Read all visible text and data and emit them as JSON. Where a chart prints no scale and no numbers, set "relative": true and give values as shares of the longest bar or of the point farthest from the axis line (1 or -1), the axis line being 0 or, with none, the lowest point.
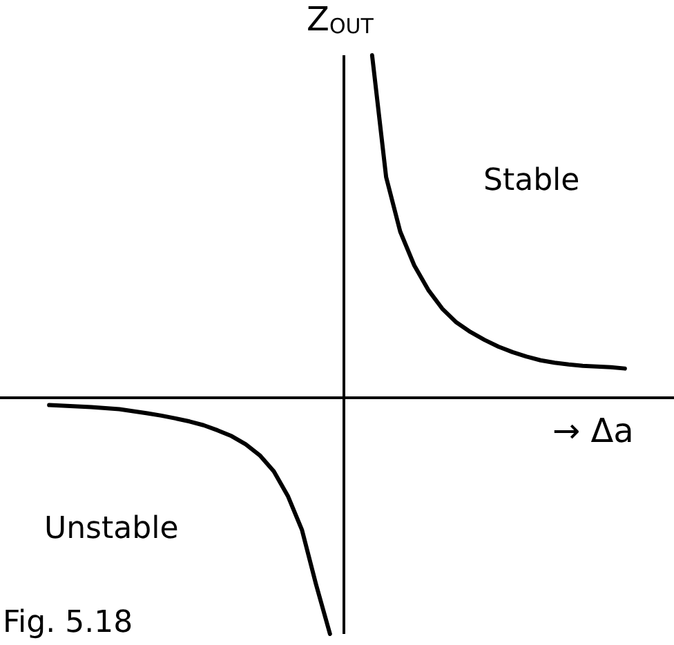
{
  "chart_data": {
    "type": "line",
    "relative": true,
    "xlabel": "→ Δa",
    "ylabel": "Z$_{OUT}$",
    "annotations": [
      "Stable",
      "Unstable",
      "Fig. 5.18"
    ],
    "categories": [
      null,
      null,
      null,
      null,
      null,
      null,
      null,
      null,
      null,
      null,
      null,
      null,
      null,
      null,
      null,
      null,
      null,
      null,
      null,
      null,
      null,
      null,
      null,
      null,
      null,
      null,
      null,
      null,
      null,
      null,
      null,
      null,
      null,
      null,
      null,
      null,
      null,
      null,
      null,
      null,
      null,
      null,
      null,
      null,
      null,
      null,
      null,
      null
    ],
    "series": [
      {
        "color": "#000000",
        "values": [
          null,
          null,
          null,
          -0.024,
          -0.026,
          -0.028,
          -0.03,
          -0.033,
          -0.036,
          -0.042,
          -0.048,
          -0.055,
          -0.063,
          -0.072,
          -0.083,
          -0.098,
          -0.115,
          -0.139,
          -0.171,
          -0.218,
          -0.29,
          -0.389,
          -0.548,
          -0.694,
          null,
          null,
          null,
          null,
          null,
          null,
          null,
          null,
          null,
          null,
          null,
          null,
          null,
          null,
          null,
          null,
          null,
          null,
          null,
          null,
          null,
          null,
          null,
          null
        ]
      },
      {
        "color": "#000000",
        "values": [
          null,
          null,
          null,
          null,
          null,
          null,
          null,
          null,
          null,
          null,
          null,
          null,
          null,
          null,
          null,
          null,
          null,
          null,
          null,
          null,
          null,
          null,
          null,
          null,
          null,
          null,
          1.0,
          0.643,
          0.484,
          0.385,
          0.313,
          0.258,
          0.218,
          0.19,
          0.167,
          0.147,
          0.131,
          0.118,
          0.107,
          0.1,
          0.095,
          0.091,
          0.089,
          0.087,
          0.083,
          null,
          null,
          null
        ]
      }
    ],
    "grid": false,
    "marker": "none",
    "line_style": "solid"
  }
}
